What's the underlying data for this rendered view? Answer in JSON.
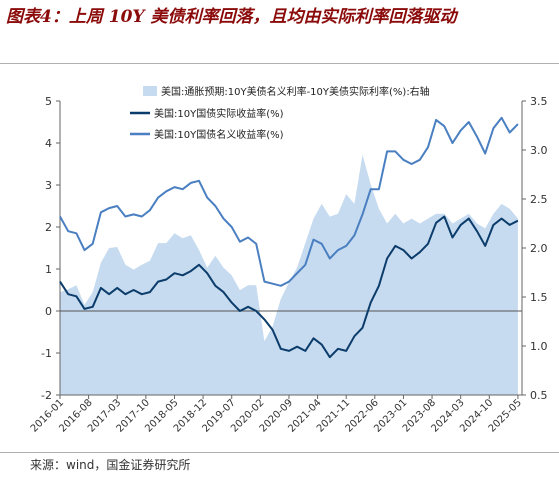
{
  "title": "图表4：上周 10Y 美债利率回落，且均由实际利率回落驱动",
  "source": "来源：wind，国金证券研究所",
  "colors": {
    "title": "#8b0a0a",
    "breakeven_fill": "#c6dbef",
    "real_line": "#0b3c6b",
    "nominal_line": "#4a7fc1"
  },
  "chart_data": {
    "type": "line",
    "legend": [
      "美国:通胀预期:10Y美债名义利率-10Y美债实际利率(%):右轴",
      "美国:10Y国债实际收益率(%)",
      "美国:10Y国债名义收益率(%)"
    ],
    "legend_position": "top",
    "x_ticks": [
      "2016-01",
      "2016-08",
      "2017-03",
      "2017-10",
      "2018-05",
      "2018-12",
      "2019-07",
      "2020-02",
      "2020-09",
      "2021-04",
      "2021-11",
      "2022-06",
      "2023-01",
      "2023-08",
      "2024-03",
      "2024-10",
      "2025-05"
    ],
    "x_range": [
      "2016-01",
      "2025-06"
    ],
    "y_left_range": [
      -2,
      5
    ],
    "y_left_ticks": [
      "-2",
      "-1",
      "0",
      "1",
      "2",
      "3",
      "4",
      "5"
    ],
    "y_right_range": [
      0.5,
      3.5
    ],
    "y_right_ticks": [
      "0.5",
      "1.0",
      "1.5",
      "2.0",
      "2.5",
      "3.0",
      "3.5"
    ],
    "grid": false,
    "dates": [
      "2016-01",
      "2016-03",
      "2016-05",
      "2016-07",
      "2016-09",
      "2016-11",
      "2017-01",
      "2017-03",
      "2017-05",
      "2017-07",
      "2017-09",
      "2017-11",
      "2018-01",
      "2018-03",
      "2018-05",
      "2018-07",
      "2018-09",
      "2018-11",
      "2019-01",
      "2019-03",
      "2019-05",
      "2019-07",
      "2019-09",
      "2019-11",
      "2020-01",
      "2020-03",
      "2020-05",
      "2020-07",
      "2020-09",
      "2020-11",
      "2021-01",
      "2021-03",
      "2021-05",
      "2021-07",
      "2021-09",
      "2021-11",
      "2022-01",
      "2022-03",
      "2022-05",
      "2022-07",
      "2022-09",
      "2022-11",
      "2023-01",
      "2023-03",
      "2023-05",
      "2023-07",
      "2023-09",
      "2023-11",
      "2024-01",
      "2024-03",
      "2024-05",
      "2024-07",
      "2024-09",
      "2024-11",
      "2025-01",
      "2025-03",
      "2025-05"
    ],
    "series": [
      {
        "name": "美国:通胀预期:10Y美债名义利率-10Y美债实际利率(%):右轴",
        "type": "area",
        "axis": "right",
        "values": [
          1.55,
          1.58,
          1.62,
          1.42,
          1.55,
          1.85,
          2.0,
          2.01,
          1.83,
          1.78,
          1.83,
          1.87,
          2.05,
          2.05,
          2.15,
          2.1,
          2.13,
          1.98,
          1.8,
          1.92,
          1.8,
          1.72,
          1.57,
          1.62,
          1.62,
          1.05,
          1.2,
          1.48,
          1.65,
          1.8,
          2.05,
          2.3,
          2.45,
          2.32,
          2.35,
          2.55,
          2.45,
          2.95,
          2.65,
          2.4,
          2.25,
          2.35,
          2.25,
          2.3,
          2.25,
          2.3,
          2.35,
          2.35,
          2.25,
          2.3,
          2.35,
          2.25,
          2.2,
          2.35,
          2.45,
          2.4,
          2.3
        ]
      },
      {
        "name": "美国:10Y国债实际收益率(%)",
        "type": "line",
        "axis": "left",
        "values": [
          0.7,
          0.4,
          0.35,
          0.05,
          0.1,
          0.55,
          0.4,
          0.55,
          0.4,
          0.5,
          0.4,
          0.45,
          0.7,
          0.75,
          0.9,
          0.85,
          0.95,
          1.1,
          0.9,
          0.6,
          0.45,
          0.2,
          0.0,
          0.1,
          0.0,
          -0.2,
          -0.45,
          -0.9,
          -0.95,
          -0.85,
          -0.95,
          -0.65,
          -0.8,
          -1.1,
          -0.9,
          -0.95,
          -0.6,
          -0.4,
          0.2,
          0.6,
          1.25,
          1.55,
          1.45,
          1.25,
          1.4,
          1.6,
          2.1,
          2.25,
          1.75,
          2.05,
          2.2,
          1.9,
          1.55,
          2.05,
          2.2,
          2.05,
          2.15
        ]
      },
      {
        "name": "美国:10Y国债名义收益率(%)",
        "type": "line",
        "axis": "left",
        "values": [
          2.25,
          1.9,
          1.85,
          1.45,
          1.6,
          2.35,
          2.45,
          2.5,
          2.25,
          2.3,
          2.25,
          2.4,
          2.7,
          2.85,
          2.95,
          2.9,
          3.05,
          3.1,
          2.7,
          2.5,
          2.2,
          2.0,
          1.65,
          1.75,
          1.6,
          0.7,
          0.65,
          0.6,
          0.7,
          0.9,
          1.1,
          1.7,
          1.6,
          1.25,
          1.45,
          1.55,
          1.8,
          2.3,
          2.9,
          2.9,
          3.8,
          3.8,
          3.6,
          3.5,
          3.6,
          3.9,
          4.55,
          4.4,
          4.0,
          4.3,
          4.5,
          4.15,
          3.75,
          4.35,
          4.6,
          4.25,
          4.45
        ]
      }
    ]
  }
}
